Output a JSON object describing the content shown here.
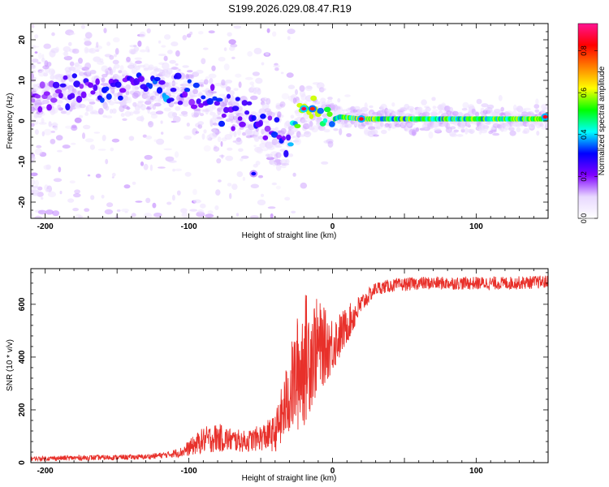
{
  "figure": {
    "title": "S199.2026.029.08.47.R19"
  },
  "chart_data": [
    {
      "type": "heatmap",
      "name": "spectrogram",
      "title": "S199.2026.029.08.47.R19",
      "xlabel": "Height of straight line (km)",
      "ylabel": "Frequency (Hz)",
      "xlim": [
        -210,
        150
      ],
      "ylim": [
        -24,
        24
      ],
      "xticks": [
        -200,
        -100,
        0,
        100
      ],
      "yticks": [
        -20,
        -10,
        0,
        10,
        20
      ],
      "colorbar": {
        "label": "Normalized spectral amplitude",
        "range": [
          0,
          0.93
        ],
        "ticks": [
          0,
          0.2,
          0.4,
          0.6,
          0.8
        ],
        "tick_labels": [
          "0.0",
          "0.2",
          "0.4",
          "0.6",
          "0.8"
        ],
        "colormap": [
          "#ffffff",
          "#e8d8ff",
          "#8000ff",
          "#0000ff",
          "#00ffff",
          "#00ff00",
          "#ffff00",
          "#ff8000",
          "#ff0000",
          "#ff1493"
        ]
      },
      "ridge": {
        "x": [
          -210,
          -190,
          -170,
          -150,
          -130,
          -120,
          -110,
          -100,
          -90,
          -80,
          -70,
          -60,
          -50,
          -40,
          -32,
          -28,
          -20,
          -14,
          -8,
          -2,
          5,
          20,
          50,
          100,
          150
        ],
        "frequency_hz": [
          6,
          7,
          8,
          9,
          9,
          9,
          8,
          7,
          5,
          4,
          2,
          1,
          0,
          -3,
          -5,
          -1,
          3,
          3,
          1,
          0,
          1,
          0.5,
          0.5,
          0.5,
          0.5
        ],
        "amplitude": [
          0.2,
          0.25,
          0.3,
          0.3,
          0.3,
          0.35,
          0.35,
          0.3,
          0.3,
          0.3,
          0.3,
          0.3,
          0.3,
          0.3,
          0.3,
          0.4,
          0.8,
          0.85,
          0.5,
          0.5,
          0.6,
          0.6,
          0.55,
          0.55,
          0.6
        ]
      },
      "blobs": [
        {
          "x": -55,
          "frequency_hz": -13,
          "amplitude": 0.3
        },
        {
          "x": -20,
          "frequency_hz": 3,
          "amplitude": 0.88
        },
        {
          "x": -14,
          "frequency_hz": 3,
          "amplitude": 0.8
        },
        {
          "x": 20,
          "frequency_hz": 0.5,
          "amplitude": 0.85
        },
        {
          "x": 148,
          "frequency_hz": 1,
          "amplitude": 0.85
        }
      ]
    },
    {
      "type": "line",
      "name": "snr",
      "xlabel": "Height of straight line (km)",
      "ylabel": "SNR (10 * v/v)",
      "xlim": [
        -210,
        150
      ],
      "ylim": [
        0,
        735
      ],
      "xticks": [
        -200,
        -100,
        0,
        100
      ],
      "yticks": [
        0,
        200,
        400,
        600
      ],
      "color": "#e8302a",
      "series": [
        {
          "name": "SNR",
          "x": [
            -210,
            -180,
            -150,
            -130,
            -115,
            -105,
            -100,
            -90,
            -80,
            -70,
            -60,
            -50,
            -40,
            -35,
            -30,
            -25,
            -20,
            -15,
            -10,
            -5,
            0,
            5,
            10,
            15,
            20,
            25,
            30,
            40,
            50,
            60,
            80,
            100,
            120,
            150
          ],
          "y": [
            15,
            18,
            20,
            22,
            30,
            40,
            55,
            85,
            95,
            85,
            80,
            95,
            110,
            180,
            260,
            330,
            390,
            420,
            440,
            440,
            450,
            480,
            520,
            560,
            600,
            630,
            660,
            670,
            675,
            680,
            680,
            680,
            680,
            685
          ],
          "noise": [
            8,
            10,
            10,
            10,
            12,
            20,
            30,
            50,
            55,
            45,
            40,
            50,
            70,
            120,
            160,
            220,
            260,
            220,
            180,
            140,
            110,
            90,
            70,
            60,
            40,
            30,
            25,
            25,
            25,
            25,
            25,
            25,
            25,
            25
          ]
        }
      ]
    }
  ]
}
